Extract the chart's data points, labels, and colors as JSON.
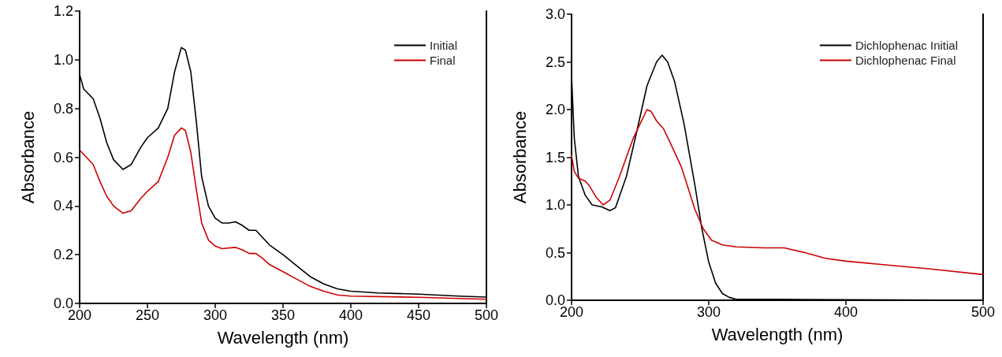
{
  "chart_data": [
    {
      "type": "line",
      "xlabel": "Wavelength (nm)",
      "ylabel": "Absorbance",
      "xlim": [
        200,
        500
      ],
      "xticks": [
        200,
        250,
        300,
        350,
        400,
        450,
        500
      ],
      "ylim": [
        0,
        1.2
      ],
      "yticks": [
        {
          "value": 0,
          "label": "0.0"
        },
        {
          "value": 0.2,
          "label": "0.2"
        },
        {
          "value": 0.4,
          "label": "0.4"
        },
        {
          "value": 0.6,
          "label": "0.6"
        },
        {
          "value": 0.8,
          "label": "0.8"
        },
        {
          "value": 1,
          "label": "1.0"
        },
        {
          "value": 1.2,
          "label": "1.2"
        }
      ],
      "grid": false,
      "legend": "top right",
      "marker": "none",
      "line_style": "solid",
      "series": [
        {
          "name": "Initial",
          "color": "#000000",
          "x": [
            200,
            203,
            210,
            215,
            220,
            225,
            232,
            238,
            245,
            250,
            258,
            265,
            270,
            275,
            278,
            282,
            286,
            290,
            295,
            300,
            305,
            310,
            315,
            320,
            325,
            330,
            335,
            340,
            350,
            360,
            370,
            380,
            390,
            400,
            420,
            450,
            480,
            500
          ],
          "values": [
            0.94,
            0.88,
            0.84,
            0.76,
            0.66,
            0.59,
            0.55,
            0.57,
            0.64,
            0.68,
            0.72,
            0.8,
            0.95,
            1.05,
            1.04,
            0.95,
            0.75,
            0.52,
            0.4,
            0.35,
            0.33,
            0.33,
            0.335,
            0.32,
            0.3,
            0.3,
            0.27,
            0.24,
            0.2,
            0.155,
            0.11,
            0.08,
            0.06,
            0.05,
            0.043,
            0.038,
            0.03,
            0.026
          ]
        },
        {
          "name": "Final",
          "color": "#cc0000",
          "x": [
            200,
            205,
            210,
            215,
            220,
            225,
            232,
            238,
            245,
            250,
            258,
            265,
            270,
            275,
            278,
            282,
            286,
            290,
            295,
            300,
            305,
            315,
            320,
            325,
            330,
            335,
            340,
            350,
            360,
            370,
            380,
            390,
            400,
            450,
            500
          ],
          "values": [
            0.63,
            0.6,
            0.57,
            0.5,
            0.44,
            0.4,
            0.37,
            0.38,
            0.43,
            0.46,
            0.5,
            0.6,
            0.69,
            0.72,
            0.71,
            0.62,
            0.47,
            0.33,
            0.26,
            0.235,
            0.225,
            0.23,
            0.22,
            0.205,
            0.205,
            0.185,
            0.16,
            0.13,
            0.1,
            0.07,
            0.05,
            0.035,
            0.03,
            0.025,
            0.017
          ]
        }
      ]
    },
    {
      "type": "line",
      "xlabel": "Wavelength (nm)",
      "ylabel": "Absorbance",
      "xlim": [
        200,
        500
      ],
      "xticks": [
        200,
        300,
        400,
        500
      ],
      "ylim": [
        0,
        3
      ],
      "yticks": [
        {
          "value": 0,
          "label": "0.0"
        },
        {
          "value": 0.5,
          "label": "0.5"
        },
        {
          "value": 1,
          "label": "1.0"
        },
        {
          "value": 1.5,
          "label": "1.5"
        },
        {
          "value": 2,
          "label": "2.0"
        },
        {
          "value": 2.5,
          "label": "2.5"
        },
        {
          "value": 3,
          "label": "3.0"
        }
      ],
      "grid": false,
      "legend": "top right",
      "marker": "none",
      "line_style": "solid",
      "series": [
        {
          "name": "Dichlophenac Initial",
          "color": "#000000",
          "x": [
            200,
            202,
            205,
            210,
            215,
            222,
            228,
            232,
            240,
            248,
            255,
            262,
            266,
            270,
            275,
            282,
            290,
            295,
            300,
            305,
            310,
            315,
            320,
            350,
            500
          ],
          "values": [
            2.35,
            1.7,
            1.3,
            1.1,
            1,
            0.98,
            0.94,
            0.97,
            1.3,
            1.8,
            2.25,
            2.5,
            2.57,
            2.5,
            2.3,
            1.85,
            1.2,
            0.75,
            0.4,
            0.18,
            0.07,
            0.03,
            0.01,
            0.01,
            0
          ]
        },
        {
          "name": "Dichlophenac Final",
          "color": "#cc0000",
          "x": [
            200,
            202,
            205,
            210,
            213,
            218,
            223,
            228,
            235,
            245,
            255,
            258,
            262,
            267,
            272,
            280,
            290,
            296,
            302,
            310,
            320,
            340,
            355,
            370,
            385,
            400,
            430,
            460,
            500
          ],
          "values": [
            1.52,
            1.35,
            1.28,
            1.25,
            1.2,
            1.08,
            1,
            1.05,
            1.3,
            1.7,
            2,
            1.98,
            1.88,
            1.8,
            1.65,
            1.4,
            0.95,
            0.75,
            0.63,
            0.58,
            0.56,
            0.55,
            0.55,
            0.5,
            0.44,
            0.41,
            0.37,
            0.33,
            0.27
          ]
        }
      ]
    }
  ]
}
